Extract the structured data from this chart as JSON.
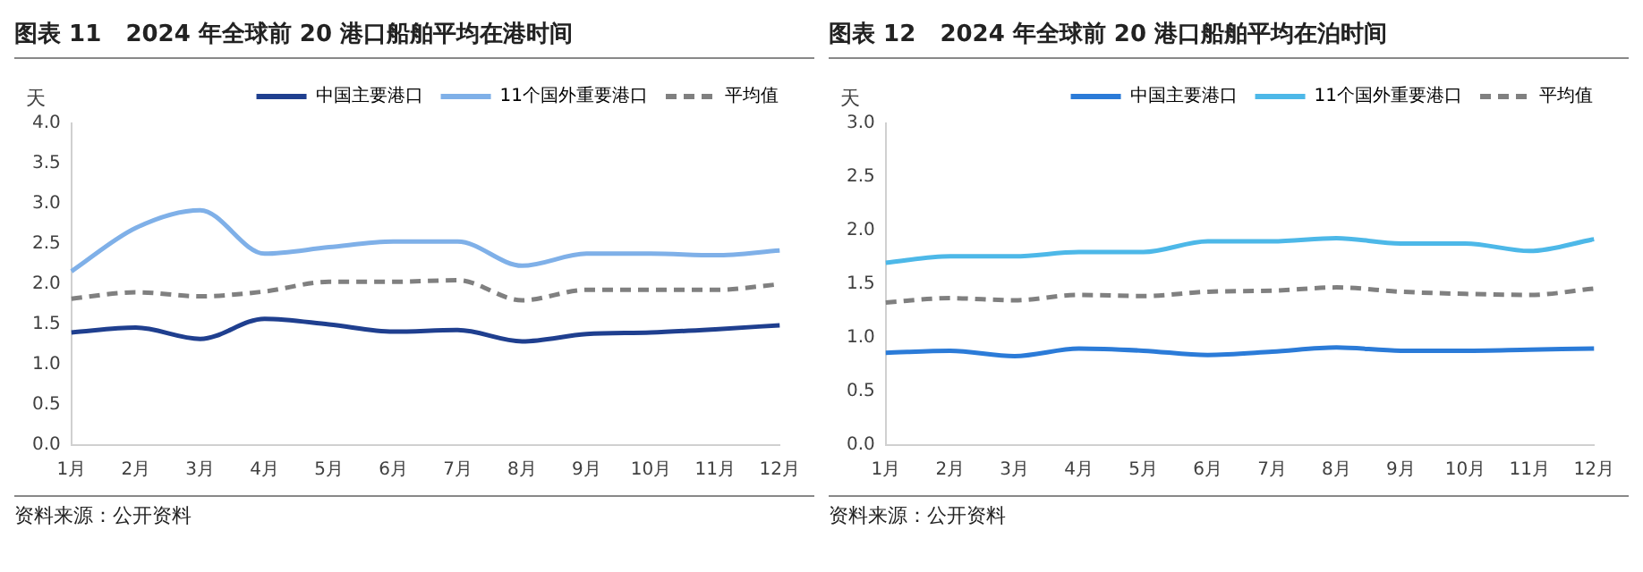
{
  "chart_data": [
    {
      "type": "line",
      "title": "图表 11   2024 年全球前 20 港口船舶平均在港时间",
      "ylabel": "天",
      "categories": [
        "1月",
        "2月",
        "3月",
        "4月",
        "5月",
        "6月",
        "7月",
        "8月",
        "9月",
        "10月",
        "11月",
        "12月"
      ],
      "ylim": [
        0,
        4
      ],
      "yticks": [
        {
          "value": 0,
          "label": "0.0"
        },
        {
          "value": 0.5,
          "label": "0.5"
        },
        {
          "value": 1,
          "label": "1.0"
        },
        {
          "value": 1.5,
          "label": "1.5"
        },
        {
          "value": 2,
          "label": "2.0"
        },
        {
          "value": 2.5,
          "label": "2.5"
        },
        {
          "value": 3,
          "label": "3.0"
        },
        {
          "value": 3.5,
          "label": "3.5"
        },
        {
          "value": 4,
          "label": "4.0"
        }
      ],
      "grid": false,
      "legend": "top right",
      "marker": "none",
      "annotations": [
        "资料来源：公开资料"
      ],
      "series": [
        {
          "name": "中国主要港口",
          "color": "#1f3f8f",
          "values": [
            1.4,
            1.46,
            1.32,
            1.57,
            1.5,
            1.41,
            1.43,
            1.29,
            1.38,
            1.4,
            1.44,
            1.49
          ]
        },
        {
          "name": "11个国外重要港口",
          "color": "#7fb0e8",
          "values": [
            2.16,
            2.7,
            2.92,
            2.38,
            2.46,
            2.53,
            2.53,
            2.23,
            2.38,
            2.38,
            2.36,
            2.42
          ]
        },
        {
          "name": "平均值",
          "color": "#808080",
          "line_style": "dashed",
          "values": [
            1.82,
            1.9,
            1.85,
            1.91,
            2.03,
            2.03,
            2.05,
            1.8,
            1.93,
            1.93,
            1.93,
            2.0
          ]
        }
      ]
    },
    {
      "type": "line",
      "title": "图表 12   2024 年全球前 20 港口船舶平均在泊时间",
      "ylabel": "天",
      "categories": [
        "1月",
        "2月",
        "3月",
        "4月",
        "5月",
        "6月",
        "7月",
        "8月",
        "9月",
        "10月",
        "11月",
        "12月"
      ],
      "ylim": [
        0,
        3
      ],
      "yticks": [
        {
          "value": 0,
          "label": "0.0"
        },
        {
          "value": 0.5,
          "label": "0.5"
        },
        {
          "value": 1,
          "label": "1.0"
        },
        {
          "value": 1.5,
          "label": "1.5"
        },
        {
          "value": 2,
          "label": "2.0"
        },
        {
          "value": 2.5,
          "label": "2.5"
        },
        {
          "value": 3,
          "label": "3.0"
        }
      ],
      "grid": false,
      "legend": "top right",
      "marker": "none",
      "annotations": [
        "资料来源：公开资料"
      ],
      "series": [
        {
          "name": "中国主要港口",
          "color": "#2b7bd8",
          "values": [
            0.86,
            0.88,
            0.83,
            0.9,
            0.88,
            0.84,
            0.87,
            0.91,
            0.88,
            0.88,
            0.89,
            0.9
          ]
        },
        {
          "name": "11个国外重要港口",
          "color": "#4db8e8",
          "values": [
            1.7,
            1.76,
            1.76,
            1.8,
            1.8,
            1.9,
            1.9,
            1.93,
            1.88,
            1.88,
            1.81,
            1.92
          ]
        },
        {
          "name": "平均值",
          "color": "#808080",
          "line_style": "dashed",
          "values": [
            1.33,
            1.37,
            1.35,
            1.4,
            1.39,
            1.43,
            1.44,
            1.47,
            1.43,
            1.41,
            1.4,
            1.46
          ]
        }
      ]
    }
  ]
}
